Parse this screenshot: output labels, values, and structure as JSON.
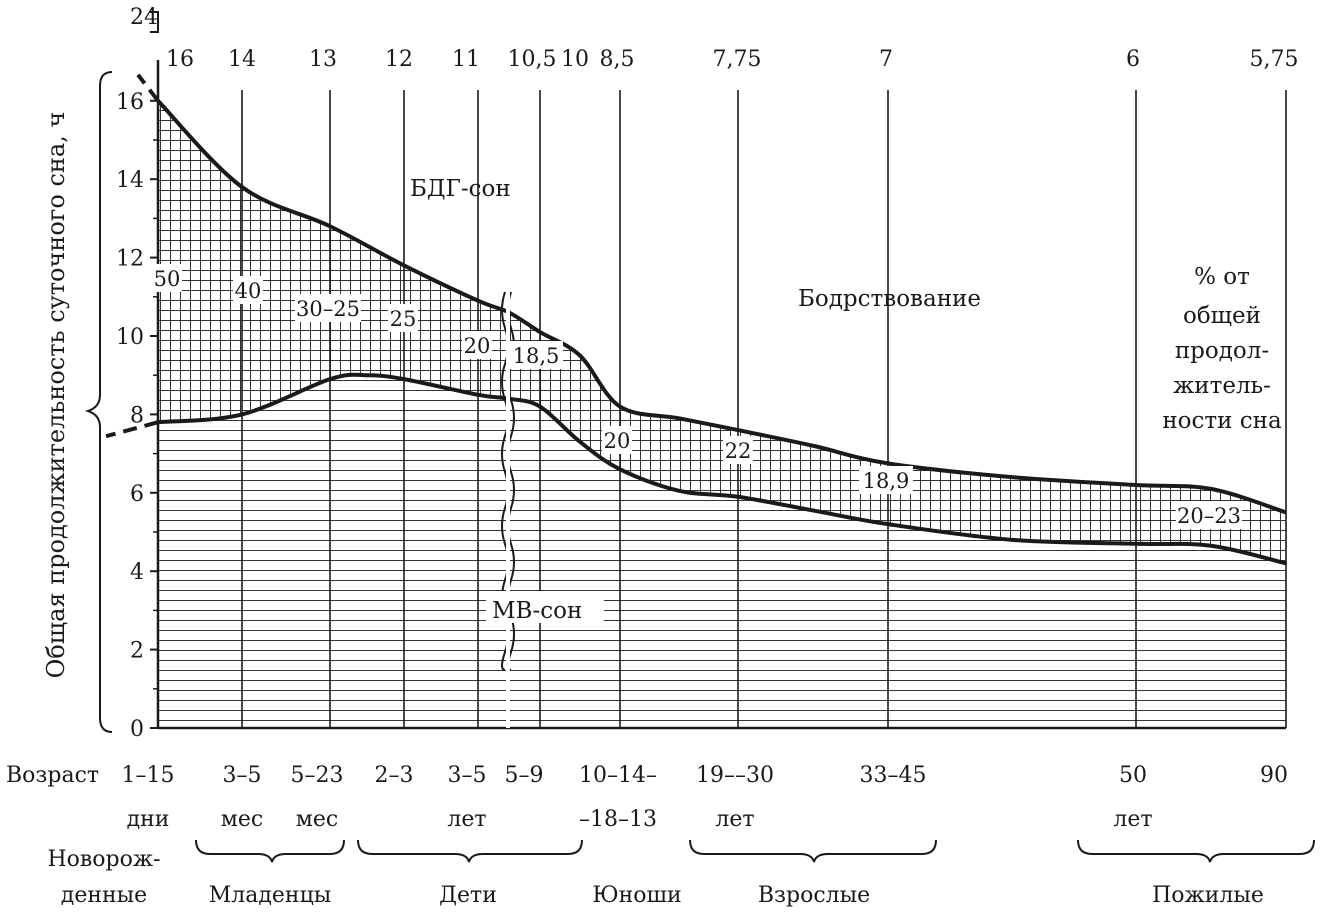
{
  "chart_data": {
    "type": "area",
    "ylabel": "Общая продолжительность суточного сна, ч",
    "y_ticks": [
      0,
      2,
      4,
      6,
      8,
      10,
      12,
      14,
      16
    ],
    "y_top_label": "24",
    "ylim": [
      0,
      17
    ],
    "grid": true,
    "age_label": "Возраст",
    "ages": [
      {
        "top": "1–15",
        "bottom": "дни"
      },
      {
        "top": "3–5",
        "bottom": "мес"
      },
      {
        "top": "5–23",
        "bottom": "мес"
      },
      {
        "top": "2–3",
        "bottom": ""
      },
      {
        "top": "3–5",
        "bottom": "лет"
      },
      {
        "top": "5–9",
        "bottom": ""
      },
      {
        "top": "10–14–",
        "bottom": "–18–13"
      },
      {
        "top": "19––30",
        "bottom": "лет"
      },
      {
        "top": "33–45",
        "bottom": ""
      },
      {
        "top": "50",
        "bottom": "лет"
      },
      {
        "top": "90",
        "bottom": ""
      }
    ],
    "total_sleep_hours_labels": [
      "16",
      "14",
      "13",
      "12",
      "11",
      "10,5",
      "10",
      "8,5",
      "7,75",
      "7",
      "6",
      "5,75"
    ],
    "series": [
      {
        "name": "БДГ-сон",
        "x": [
          0,
          1,
          2,
          3,
          4,
          4.5,
          5,
          5.5,
          6,
          6.5,
          7,
          7.5,
          8,
          8.5,
          9,
          9.5,
          10
        ],
        "values": [
          16.0,
          13.8,
          12.8,
          11.8,
          10.9,
          10.6,
          10.1,
          9.5,
          8.2,
          7.9,
          7.6,
          7.2,
          6.75,
          6.4,
          6.2,
          6.1,
          5.5
        ]
      },
      {
        "name": "МВ-сон",
        "x": [
          0,
          1,
          2,
          2.5,
          3,
          4,
          4.5,
          5,
          5.5,
          6,
          6.5,
          7,
          7.5,
          8,
          8.5,
          9,
          9.5,
          10
        ],
        "values": [
          7.8,
          8.0,
          8.9,
          9.0,
          8.9,
          8.5,
          8.4,
          8.2,
          7.3,
          6.6,
          6.05,
          5.9,
          5.55,
          5.2,
          4.8,
          4.7,
          4.65,
          4.2
        ]
      }
    ],
    "rem_percent_labels": [
      "50",
      "40",
      "30–25",
      "25",
      "20",
      "18,5",
      "20",
      "22",
      "18,9",
      "20–23"
    ],
    "region_labels": {
      "rem": "БДГ-сон",
      "wake": "Бодрствование",
      "nrem": "МВ-сон",
      "pct_note": [
        "% от",
        "общей",
        "продол-",
        "житель-",
        "ности сна"
      ]
    },
    "age_groups": [
      "Новорож-",
      "денные",
      "Младенцы",
      "Дети",
      "Юноши",
      "Взрослые",
      "Пожилые"
    ]
  }
}
